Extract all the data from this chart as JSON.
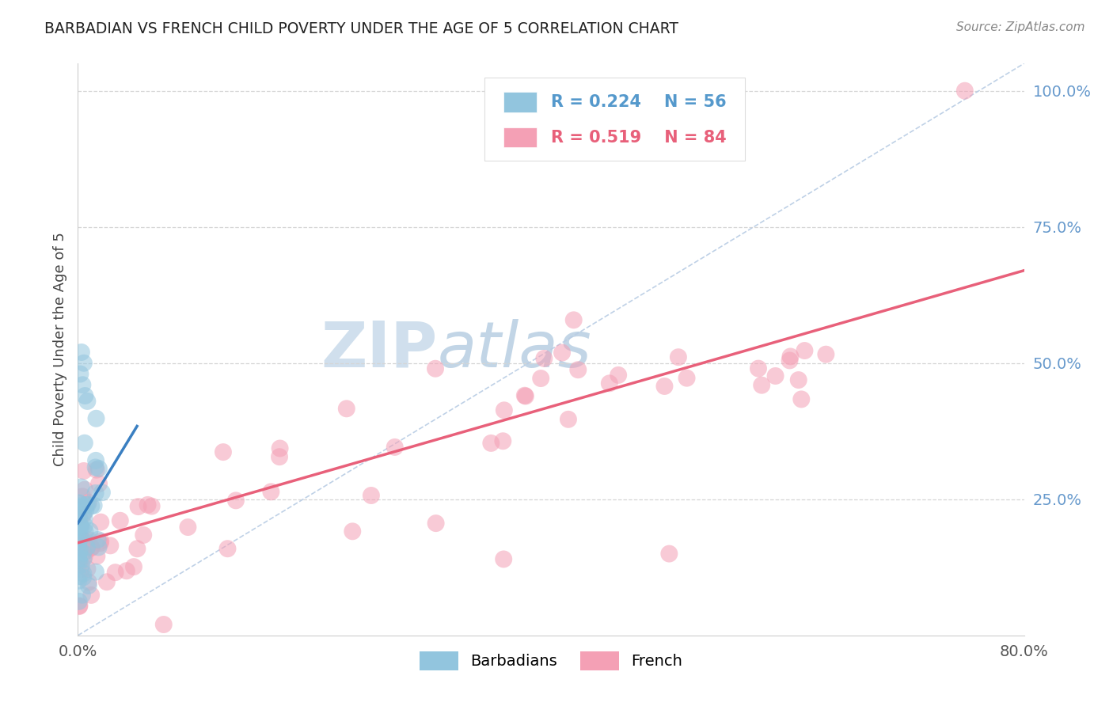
{
  "title": "BARBADIAN VS FRENCH CHILD POVERTY UNDER THE AGE OF 5 CORRELATION CHART",
  "source": "Source: ZipAtlas.com",
  "ylabel": "Child Poverty Under the Age of 5",
  "xlim": [
    0,
    0.8
  ],
  "ylim": [
    0,
    1.05
  ],
  "r1": "0.224",
  "n1": "56",
  "r2": "0.519",
  "n2": "84",
  "color_barb": "#92c5de",
  "color_french": "#f4a0b5",
  "color_trend_barb": "#3a7fc1",
  "color_trend_french": "#e8607a",
  "color_diag": "#b8cce4",
  "watermark_zip": "#c8daea",
  "watermark_atlas": "#a8c4dc",
  "grid_color": "#d5d5d5",
  "yticklabel_color": "#6699cc",
  "title_color": "#222222",
  "source_color": "#888888",
  "spine_color": "#cccccc",
  "legend_border": "#dddddd",
  "legend_text_blue": "#5599cc",
  "legend_text_pink": "#e8607a",
  "bottom_legend_label1": "Barbadians",
  "bottom_legend_label2": "French"
}
